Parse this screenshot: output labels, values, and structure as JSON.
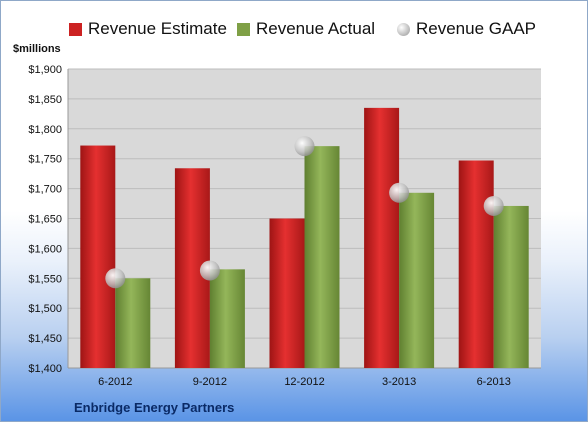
{
  "chart_data": {
    "type": "bar",
    "units_label": "$millions",
    "categories": [
      "6-2012",
      "9-2012",
      "12-2012",
      "3-2013",
      "6-2013"
    ],
    "series": [
      {
        "name": "Revenue Estimate",
        "kind": "bar",
        "color": "#cc2222",
        "values": [
          1772,
          1734,
          1650,
          1835,
          1747
        ]
      },
      {
        "name": "Revenue Actual",
        "kind": "bar",
        "color": "#7fa046",
        "values": [
          1550,
          1565,
          1771,
          1693,
          1671
        ]
      },
      {
        "name": "Revenue GAAP",
        "kind": "marker",
        "color": "#c8c8c8",
        "values": [
          1550,
          1563,
          1771,
          1693,
          1671
        ]
      }
    ],
    "ylim": [
      1400,
      1900
    ],
    "yticks": [
      1400,
      1450,
      1500,
      1550,
      1600,
      1650,
      1700,
      1750,
      1800,
      1850,
      1900
    ],
    "ytick_labels": [
      "$1,400",
      "$1,450",
      "$1,500",
      "$1,550",
      "$1,600",
      "$1,650",
      "$1,700",
      "$1,750",
      "$1,800",
      "$1,850",
      "$1,900"
    ],
    "grid": true,
    "legend_position": "top",
    "plot_background": "#d9d9d9"
  },
  "footer": {
    "company": "Enbridge Energy Partners"
  }
}
